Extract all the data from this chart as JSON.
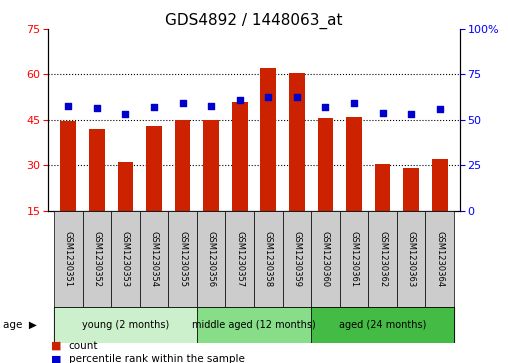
{
  "title": "GDS4892 / 1448063_at",
  "samples": [
    "GSM1230351",
    "GSM1230352",
    "GSM1230353",
    "GSM1230354",
    "GSM1230355",
    "GSM1230356",
    "GSM1230357",
    "GSM1230358",
    "GSM1230359",
    "GSM1230360",
    "GSM1230361",
    "GSM1230362",
    "GSM1230363",
    "GSM1230364"
  ],
  "counts": [
    44.5,
    42.0,
    31.0,
    43.0,
    45.0,
    45.0,
    51.0,
    62.0,
    60.5,
    45.5,
    46.0,
    30.5,
    29.0,
    32.0
  ],
  "percentiles": [
    57.5,
    56.5,
    53.0,
    57.0,
    59.0,
    57.5,
    61.0,
    62.5,
    62.5,
    57.0,
    59.0,
    53.5,
    53.0,
    56.0
  ],
  "bar_color": "#cc2200",
  "dot_color": "#0000cc",
  "ylim_left": [
    15,
    75
  ],
  "ylim_right": [
    0,
    100
  ],
  "yticks_left": [
    15,
    30,
    45,
    60,
    75
  ],
  "yticks_right": [
    0,
    25,
    50,
    75,
    100
  ],
  "groups": [
    {
      "label": "young (2 months)",
      "start": 0,
      "end": 5
    },
    {
      "label": "middle aged (12 months)",
      "start": 5,
      "end": 9
    },
    {
      "label": "aged (24 months)",
      "start": 9,
      "end": 14
    }
  ],
  "grp_colors": [
    "#ccf0cc",
    "#88dd88",
    "#44bb44"
  ],
  "age_label": "age",
  "legend_count_label": "count",
  "legend_pct_label": "percentile rank within the sample",
  "title_fontsize": 11,
  "tick_fontsize": 8,
  "bar_width": 0.55,
  "sample_box_color": "#cccccc"
}
